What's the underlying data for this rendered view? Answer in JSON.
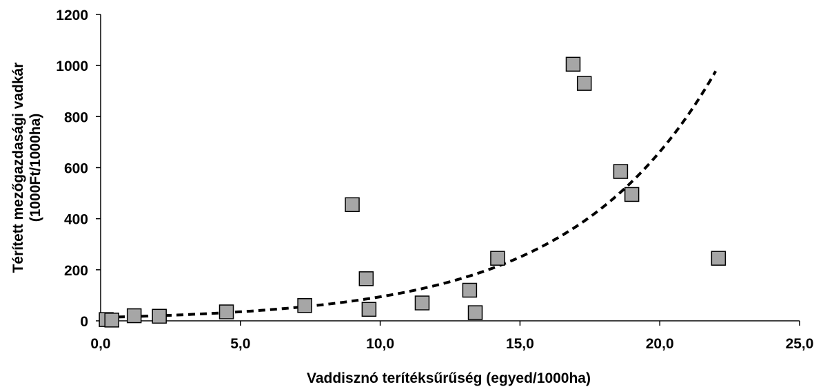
{
  "chart_data": {
    "type": "scatter",
    "title": "",
    "xlabel": "Vaddisznó terítéksűrűség (egyed/1000ha)",
    "ylabel": [
      "Térített mezőgazdasági vadkár",
      "(1000Ft/1000ha)"
    ],
    "xlim": [
      0,
      25
    ],
    "ylim": [
      0,
      1200
    ],
    "x_ticks": [
      0,
      5,
      10,
      15,
      20,
      25
    ],
    "x_tick_labels": [
      "0,0",
      "5,0",
      "10,0",
      "15,0",
      "20,0",
      "25,0"
    ],
    "y_ticks": [
      0,
      200,
      400,
      600,
      800,
      1000,
      1200
    ],
    "y_tick_labels": [
      "0",
      "200",
      "400",
      "600",
      "800",
      "1000",
      "1200"
    ],
    "grid": false,
    "legend": "none",
    "marker": {
      "shape": "square",
      "fill": "#a6a6a6",
      "stroke": "#000000"
    },
    "series": [
      {
        "points": [
          {
            "x": 0.2,
            "y": 5
          },
          {
            "x": 0.4,
            "y": 3
          },
          {
            "x": 1.2,
            "y": 20
          },
          {
            "x": 2.1,
            "y": 18
          },
          {
            "x": 4.5,
            "y": 35
          },
          {
            "x": 7.3,
            "y": 60
          },
          {
            "x": 9.0,
            "y": 455
          },
          {
            "x": 9.5,
            "y": 165
          },
          {
            "x": 9.6,
            "y": 45
          },
          {
            "x": 11.5,
            "y": 70
          },
          {
            "x": 13.2,
            "y": 120
          },
          {
            "x": 13.4,
            "y": 32
          },
          {
            "x": 14.2,
            "y": 245
          },
          {
            "x": 16.9,
            "y": 1005
          },
          {
            "x": 17.3,
            "y": 930
          },
          {
            "x": 18.6,
            "y": 585
          },
          {
            "x": 19.0,
            "y": 495
          },
          {
            "x": 22.1,
            "y": 245
          }
        ]
      }
    ],
    "trendline": {
      "type": "exponential",
      "style": "dashed",
      "color": "#000000",
      "x_range": [
        0.2,
        22.0
      ],
      "params": {
        "a": 13.4,
        "b": 0.195
      }
    }
  }
}
